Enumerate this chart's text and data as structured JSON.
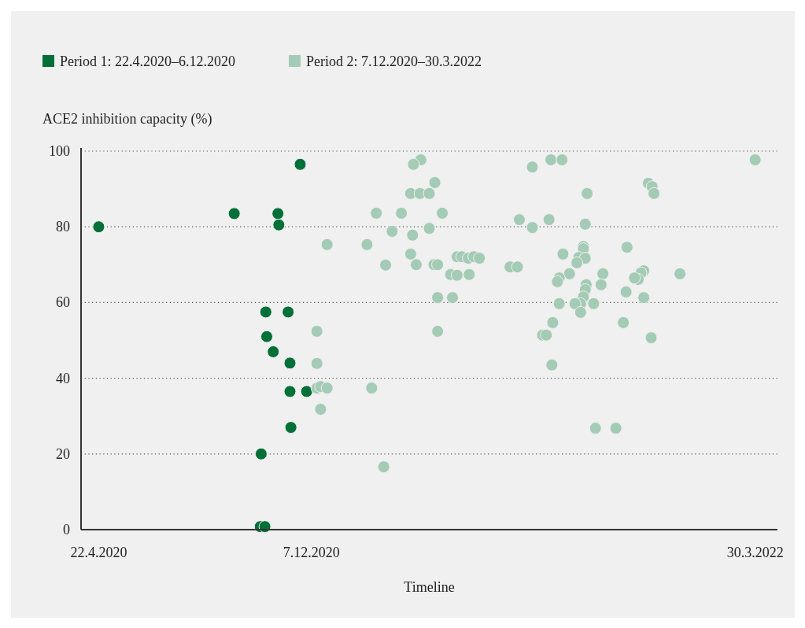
{
  "chart_data": {
    "type": "scatter",
    "ylabel": "ACE2 inhibition capacity (%)",
    "xlabel": "Timeline",
    "xlim": [
      "2020-04-03",
      "2022-04-23"
    ],
    "xticks": [
      {
        "value": "2020-04-22",
        "label": "22.4.2020"
      },
      {
        "value": "2020-12-07",
        "label": "7.12.2020"
      },
      {
        "value": "2022-03-30",
        "label": "30.3.2022"
      }
    ],
    "ylim": [
      0,
      100
    ],
    "yticks": [
      0,
      20,
      40,
      60,
      80,
      100
    ],
    "grid": "y",
    "legend": "top left",
    "marker": "circle",
    "series": [
      {
        "name": "Period 1: 22.4.2020–6.12.2020",
        "color": "#007038",
        "x": [
          "2020-04-22",
          "2020-09-15",
          "2020-11-01",
          "2020-11-02",
          "2020-11-25",
          "2020-10-19",
          "2020-11-12",
          "2020-10-20",
          "2020-10-27",
          "2020-11-14",
          "2020-11-14",
          "2020-12-02",
          "2020-11-15",
          "2020-10-14",
          "2020-10-13",
          "2020-10-18"
        ],
        "values": [
          80,
          83.5,
          83.5,
          80.5,
          96.5,
          57.5,
          57.5,
          51,
          47,
          44,
          36.5,
          36.5,
          27,
          20,
          0.8,
          0.8
        ]
      },
      {
        "name": "Period 2: 7.12.2020–30.3.2022",
        "color": "#a3cbb5",
        "x": [
          "2021-04-04",
          "2021-03-27",
          "2021-04-19",
          "2021-03-24",
          "2021-04-03",
          "2021-04-13",
          "2021-02-15",
          "2021-03-14",
          "2021-04-27",
          "2021-03-04",
          "2021-03-26",
          "2021-04-13",
          "2020-12-24",
          "2021-02-05",
          "2021-03-24",
          "2021-02-25",
          "2021-03-30",
          "2021-04-18",
          "2021-04-22",
          "2021-05-13",
          "2021-05-18",
          "2021-05-25",
          "2021-05-31",
          "2021-06-06",
          "2021-05-06",
          "2021-05-13",
          "2021-05-26",
          "2021-07-09",
          "2021-07-17",
          "2021-04-22",
          "2021-05-08",
          "2021-08-02",
          "2021-07-19",
          "2021-08-02",
          "2020-12-13",
          "2021-04-22",
          "2021-08-22",
          "2021-09-03",
          "2022-03-30",
          "2021-12-05",
          "2021-12-09",
          "2021-12-11",
          "2021-09-30",
          "2021-08-20",
          "2021-09-28",
          "2021-09-26",
          "2021-09-26",
          "2021-11-12",
          "2021-09-04",
          "2021-09-21",
          "2021-09-28",
          "2021-09-19",
          "2021-09-11",
          "2021-10-17",
          "2021-11-30",
          "2021-11-27",
          "2021-11-24",
          "2021-11-20",
          "2022-01-08",
          "2021-08-31",
          "2021-08-29",
          "2021-09-29",
          "2021-09-28",
          "2021-09-26",
          "2021-09-23",
          "2021-09-17",
          "2021-09-23",
          "2021-10-15",
          "2021-11-11",
          "2021-11-30",
          "2021-08-31",
          "2021-10-07",
          "2021-08-24",
          "2021-11-08",
          "2021-08-13",
          "2021-08-17",
          "2021-12-08",
          "2020-12-13",
          "2020-12-13",
          "2020-12-17",
          "2020-12-24",
          "2021-02-10",
          "2020-12-17",
          "2021-02-23",
          "2021-08-23",
          "2021-10-09",
          "2021-10-31"
        ],
        "values": [
          97.7,
          96.5,
          91.7,
          88.8,
          88.8,
          88.8,
          83.6,
          83.6,
          83.6,
          78.8,
          77.8,
          79.6,
          75.3,
          75.3,
          72.8,
          69.9,
          70,
          70,
          70,
          72.1,
          72.1,
          71.7,
          72.1,
          71.7,
          67.4,
          67.2,
          67.4,
          69.4,
          69.4,
          61.3,
          61.3,
          95.8,
          81.9,
          79.8,
          52.4,
          52.4,
          97.7,
          97.7,
          97.7,
          91.5,
          90.6,
          88.8,
          88.8,
          81.9,
          80.7,
          74.8,
          74.2,
          74.6,
          72.8,
          71.9,
          71.7,
          70.5,
          67.6,
          67.6,
          68.4,
          67.8,
          66.1,
          66.5,
          67.6,
          66.5,
          65.5,
          64.7,
          63.4,
          61.5,
          59.7,
          59.7,
          57.4,
          64.7,
          62.8,
          61.3,
          59.7,
          59.7,
          54.7,
          54.7,
          51.4,
          51.4,
          50.7,
          43.9,
          37.4,
          37.8,
          37.4,
          37.4,
          31.8,
          16.6,
          43.5,
          26.8,
          26.8
        ]
      }
    ]
  }
}
